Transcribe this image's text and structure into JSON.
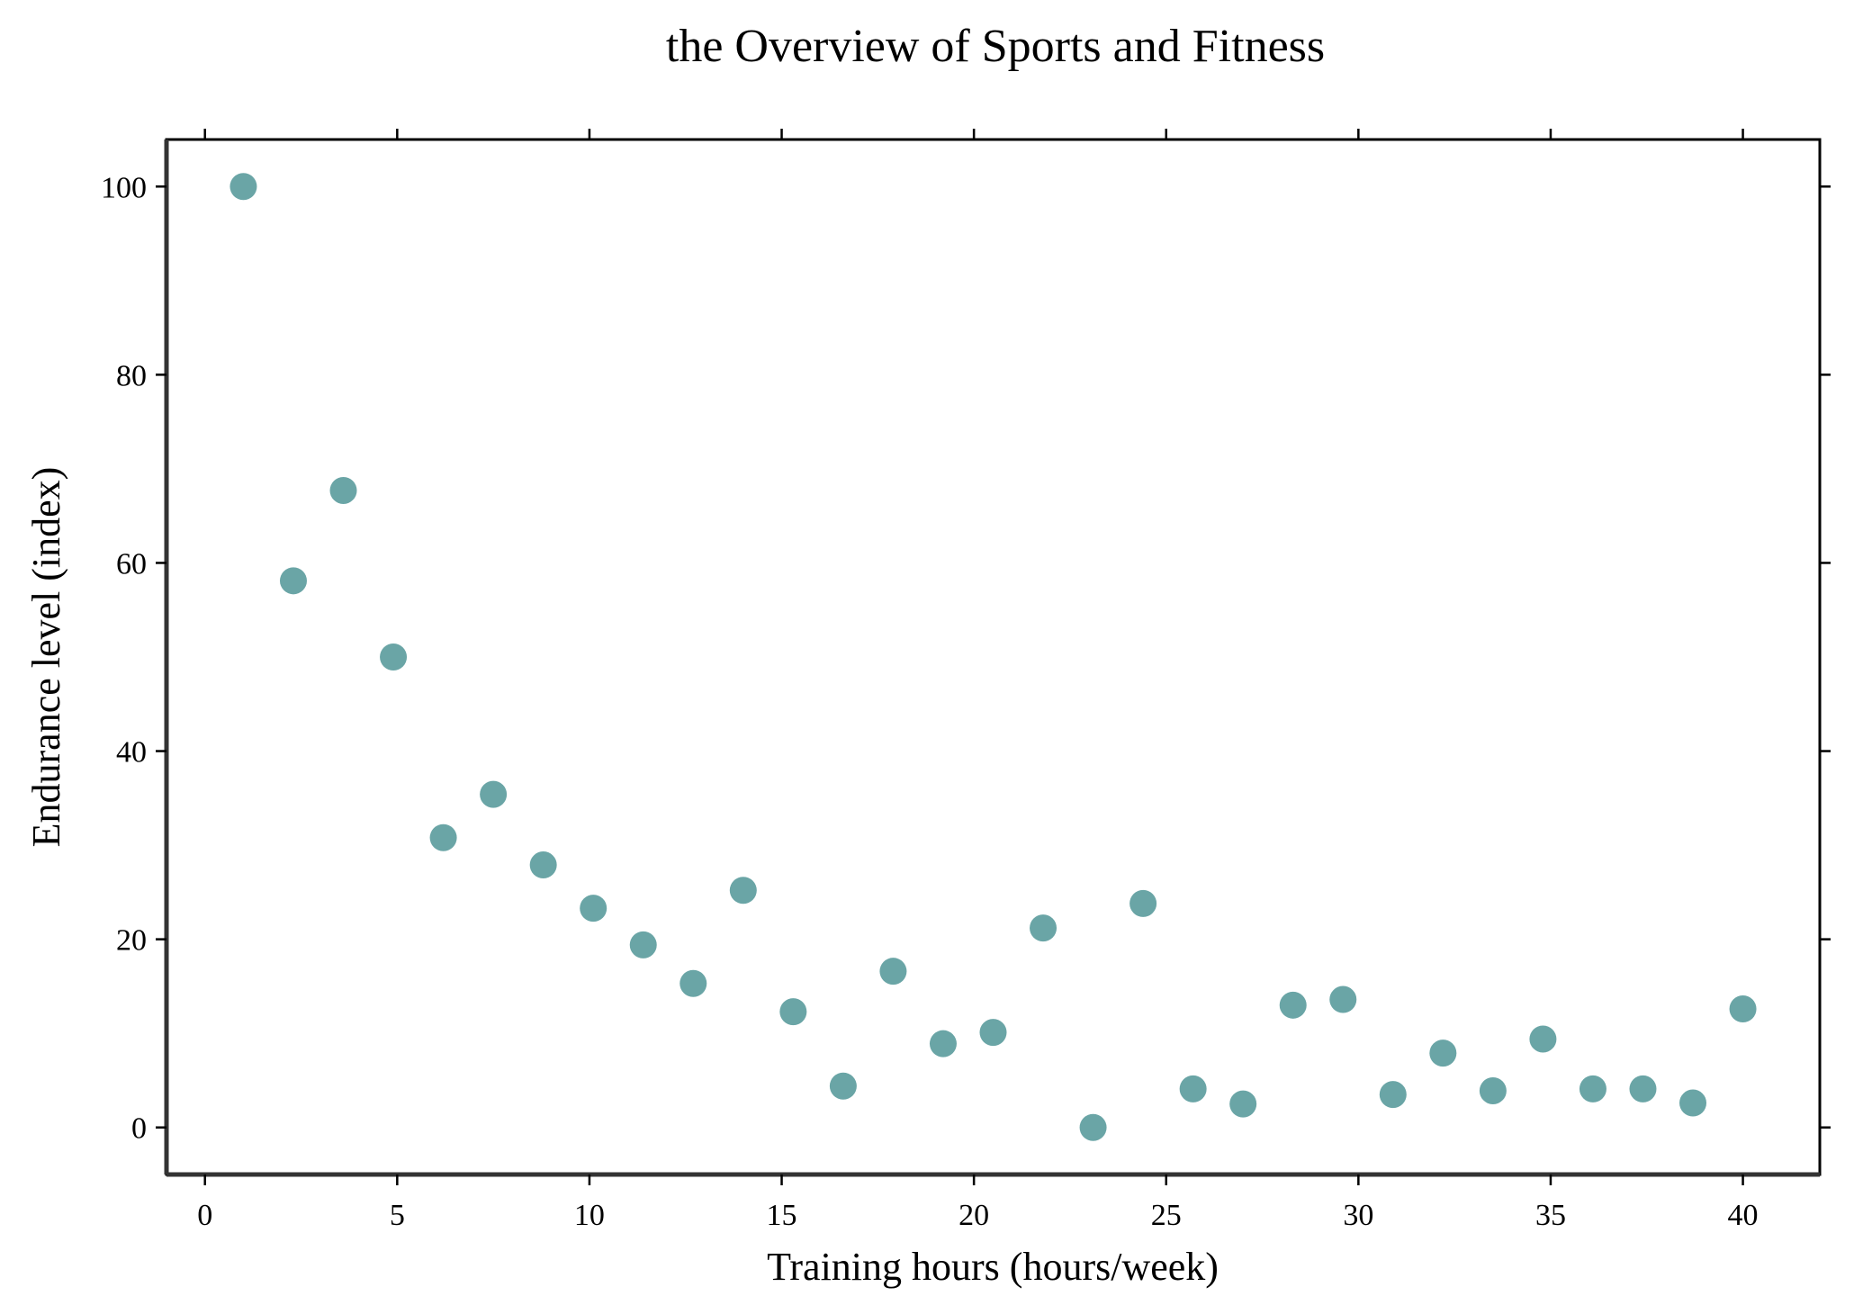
{
  "chart_data": {
    "type": "scatter",
    "title": "the Overview of Sports and Fitness",
    "xlabel": "Training hours (hours/week)",
    "ylabel": "Endurance level (index)",
    "xlim": [
      -1,
      42
    ],
    "ylim": [
      -5,
      105
    ],
    "xticks": [
      0,
      5,
      10,
      15,
      20,
      25,
      30,
      35,
      40
    ],
    "yticks": [
      0,
      20,
      40,
      60,
      80,
      100
    ],
    "grid": false,
    "legend": "none",
    "point_color": "#6aa5a6",
    "series": [
      {
        "x": [
          1.0,
          2.3,
          3.6,
          4.9,
          6.2,
          7.5,
          8.8,
          10.1,
          11.4,
          12.7,
          14.0,
          15.3,
          16.6,
          17.9,
          19.2,
          20.5,
          21.8,
          23.1,
          24.4,
          25.7,
          27.0,
          28.3,
          29.6,
          30.9,
          32.2,
          33.5,
          34.8,
          36.1,
          37.4,
          38.7,
          40.0
        ],
        "y": [
          100.0,
          58.1,
          67.7,
          50.0,
          30.8,
          35.4,
          27.9,
          23.3,
          19.4,
          15.3,
          25.2,
          12.3,
          4.4,
          16.6,
          8.9,
          10.1,
          21.2,
          0.0,
          23.8,
          4.1,
          2.5,
          13.0,
          13.6,
          3.5,
          7.9,
          3.9,
          9.4,
          4.1,
          4.1,
          2.6,
          12.6
        ]
      }
    ]
  }
}
